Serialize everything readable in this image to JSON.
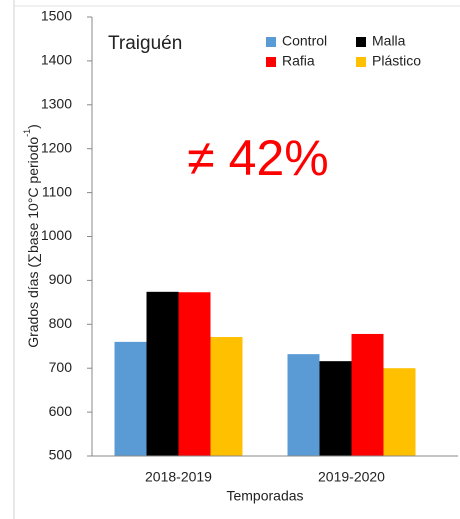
{
  "chart_data": {
    "type": "bar",
    "title": "Traiguén",
    "annotation": "≠ 42%",
    "x_label": "Temporadas",
    "y_label": {
      "text": "Grados días  (∑base 10°C periodo",
      "superscript": "-1",
      "close": ")"
    },
    "categories": [
      "2018-2019",
      "2019-2020"
    ],
    "series": [
      {
        "name": "Control",
        "color": "#5b9bd5",
        "values": [
          760,
          732
        ]
      },
      {
        "name": "Malla",
        "color": "#000000",
        "values": [
          874,
          716
        ]
      },
      {
        "name": "Rafia",
        "color": "#ff0000",
        "values": [
          873,
          778
        ]
      },
      {
        "name": "Plástico",
        "color": "#ffc000",
        "values": [
          771,
          700
        ]
      }
    ],
    "ylim": [
      500,
      1500
    ],
    "yticks": [
      500,
      600,
      700,
      800,
      900,
      1000,
      1100,
      1200,
      1300,
      1400,
      1500
    ],
    "grid": false
  }
}
